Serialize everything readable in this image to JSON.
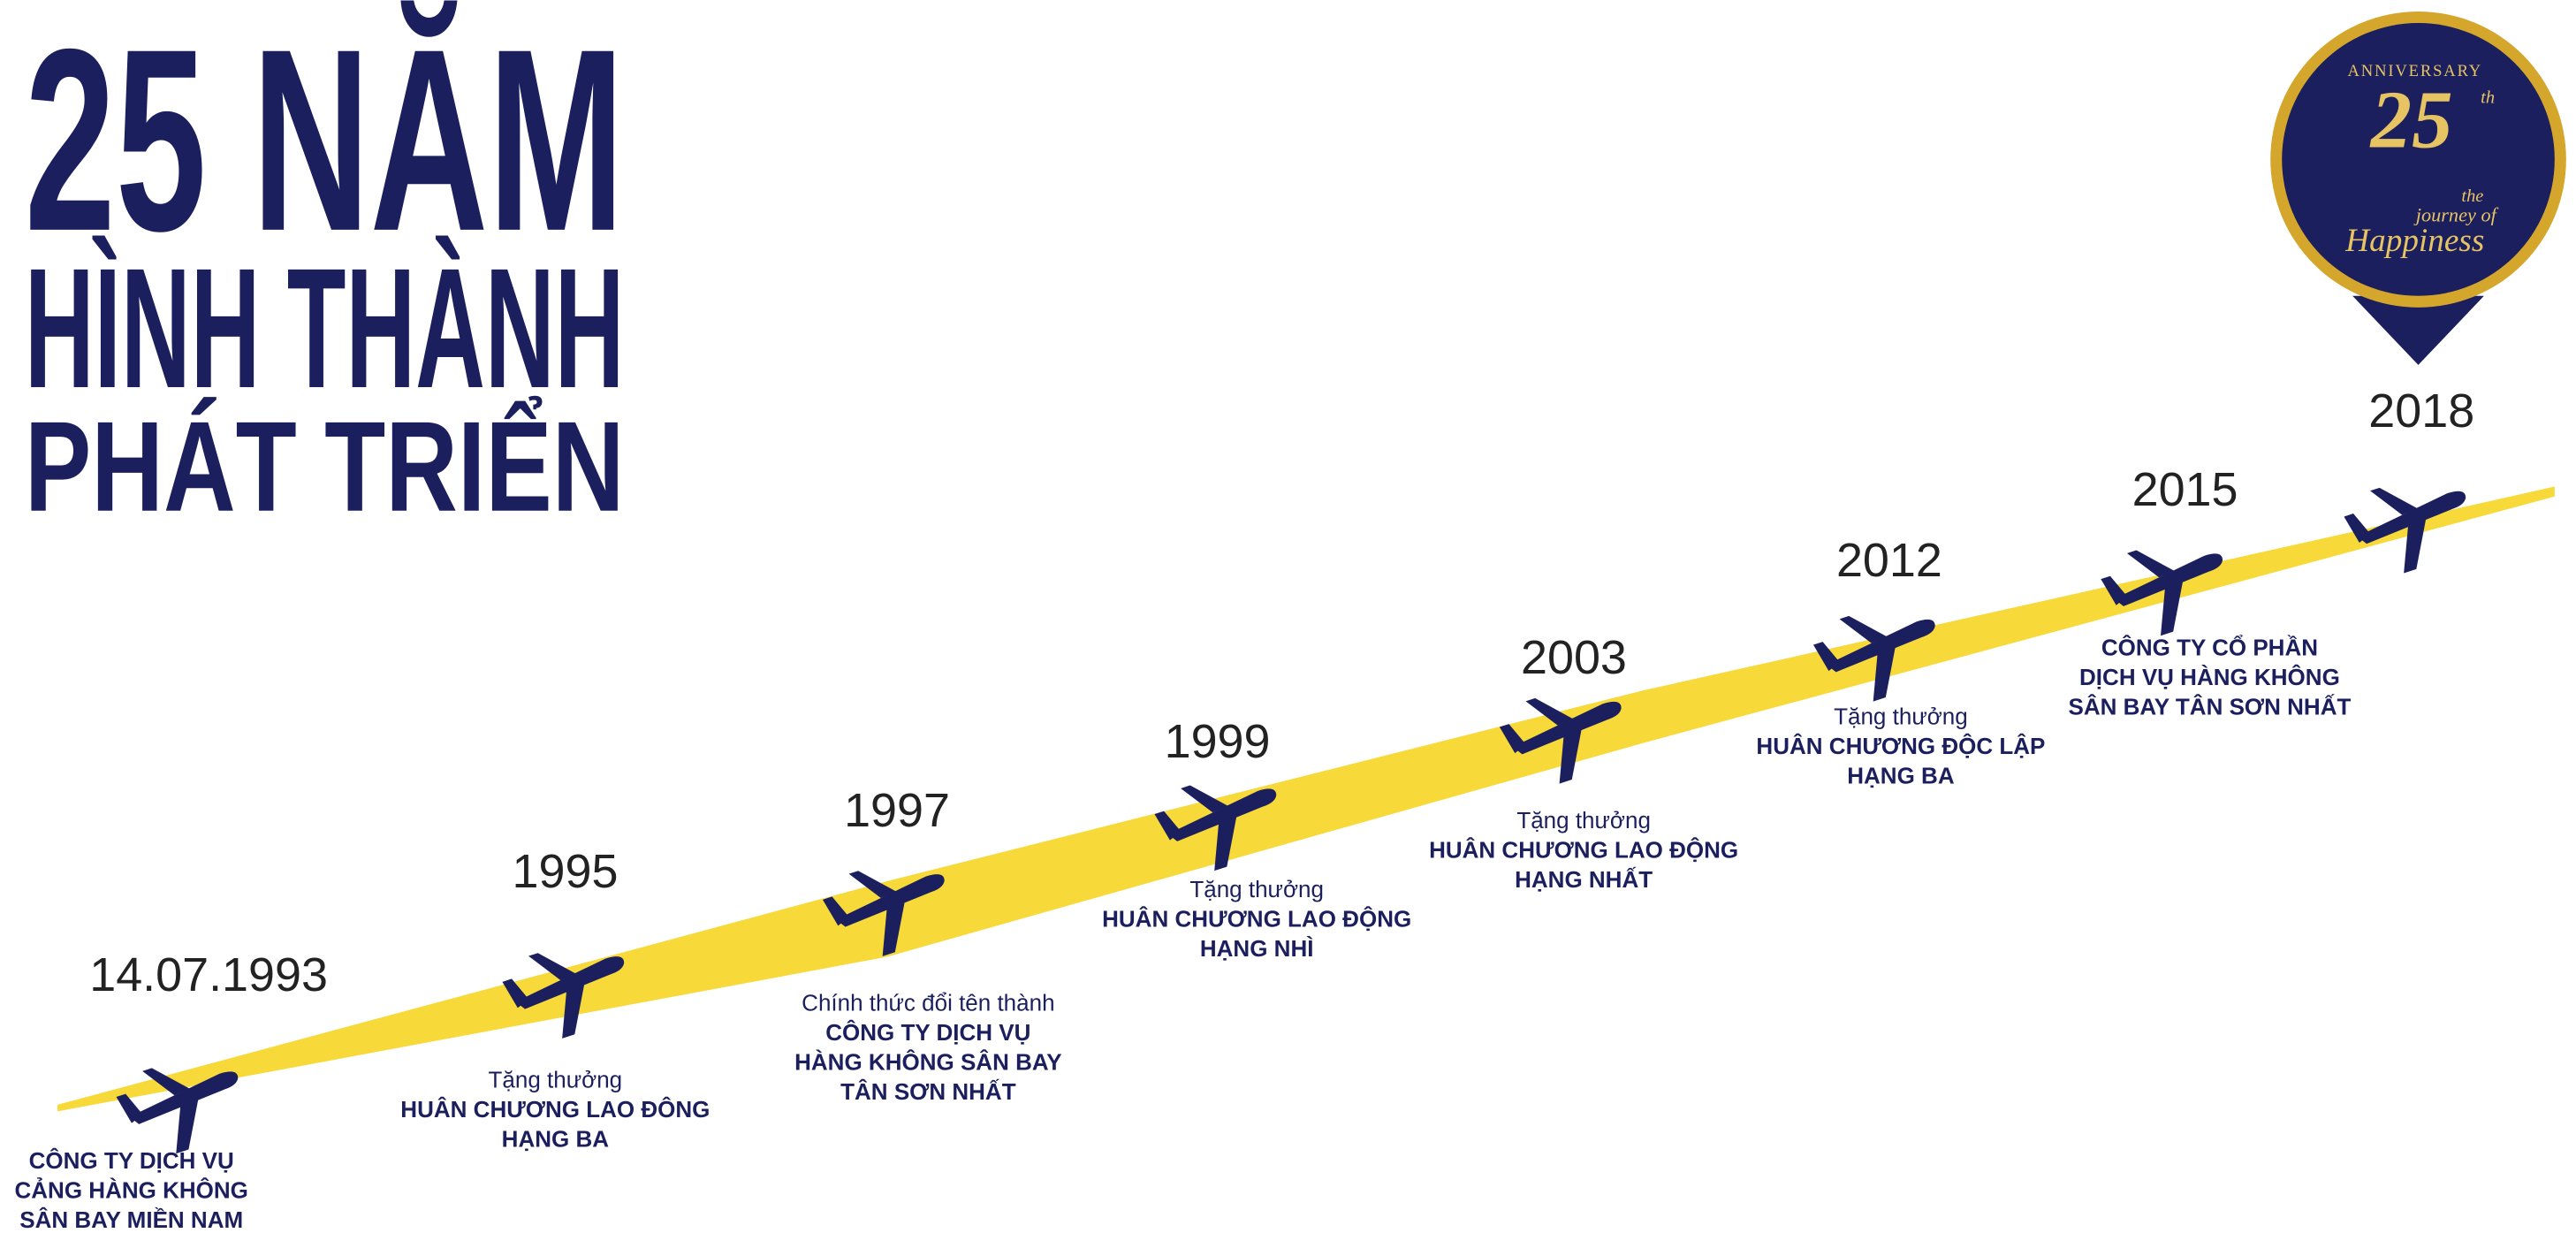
{
  "header": {
    "title": [
      "25 NĂM",
      "HÌNH THÀNH",
      "PHÁT TRIỂN"
    ]
  },
  "badge": {
    "top": "ANNIVERSARY",
    "number": "25",
    "suffix": "th",
    "line1": "the",
    "line2": "journey of",
    "line3": "Happiness"
  },
  "milestones": [
    {
      "date": "14.07.1993",
      "lines": [
        "CÔNG TY DỊCH VỤ",
        "CẢNG HÀNG KHÔNG",
        "SÂN BAY MIỀN NAM"
      ]
    },
    {
      "date": "1995",
      "intro": "Tặng thưởng",
      "lines": [
        "HUÂN CHƯƠNG LAO ĐÔNG",
        "HẠNG BA"
      ]
    },
    {
      "date": "1997",
      "intro": "Chính thức đổi tên thành",
      "lines": [
        "CÔNG TY DỊCH VỤ",
        "HÀNG KHÔNG SÂN BAY",
        "TÂN SƠN NHẤT"
      ]
    },
    {
      "date": "1999",
      "intro": "Tặng thưởng",
      "lines": [
        "HUÂN CHƯƠNG LAO ĐỘNG",
        "HẠNG NHÌ"
      ]
    },
    {
      "date": "2003",
      "intro": "Tặng thưởng",
      "lines": [
        "HUÂN CHƯƠNG LAO ĐỘNG",
        "HẠNG NHẤT"
      ]
    },
    {
      "date": "2012",
      "intro": "Tặng thưởng",
      "lines": [
        "HUÂN CHƯƠNG ĐỘC LẬP",
        "HẠNG BA"
      ]
    },
    {
      "date": "2015",
      "lines": [
        "CÔNG TY CỔ PHẦN",
        "DỊCH VỤ HÀNG KHÔNG",
        "SÂN BAY TÂN SƠN NHẤT"
      ]
    },
    {
      "date": "2018"
    }
  ]
}
